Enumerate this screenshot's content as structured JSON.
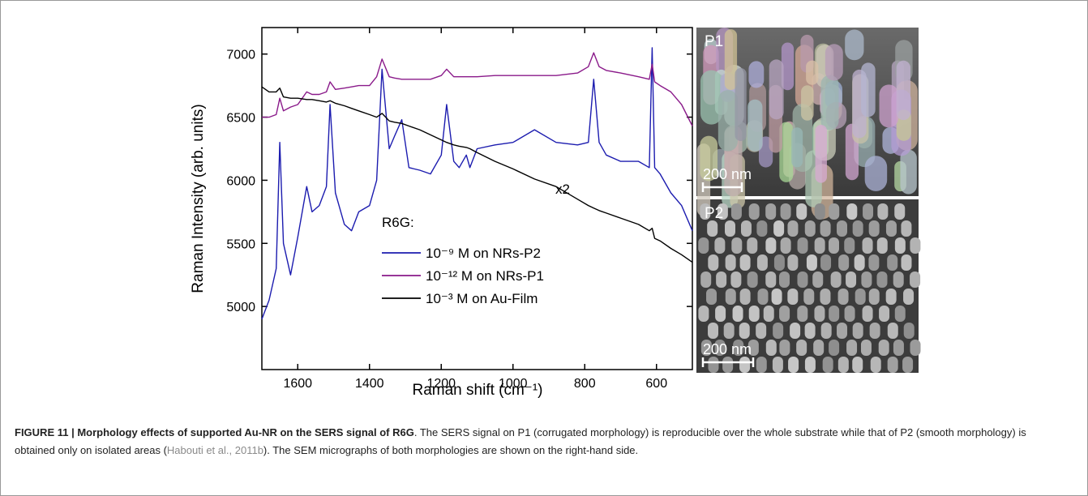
{
  "chart_data": {
    "type": "line",
    "xlabel": "Raman shift (cm⁻¹)",
    "ylabel": "Raman Intensity (arb. units)",
    "legend_title": "R6G:",
    "annotation": "x2",
    "x": [
      1700,
      1680,
      1660,
      1650,
      1640,
      1620,
      1600,
      1575,
      1560,
      1540,
      1520,
      1510,
      1495,
      1470,
      1450,
      1430,
      1400,
      1380,
      1365,
      1345,
      1330,
      1310,
      1290,
      1260,
      1230,
      1200,
      1185,
      1165,
      1150,
      1130,
      1120,
      1100,
      1050,
      1000,
      940,
      880,
      820,
      790,
      775,
      760,
      740,
      700,
      650,
      620,
      612,
      605,
      590,
      560,
      530,
      500
    ],
    "series": [
      {
        "name": "10⁻⁹ M on NRs-P2",
        "color": "#1c1caf",
        "values": [
          4900,
          5050,
          5300,
          6300,
          5500,
          5250,
          5550,
          5950,
          5750,
          5800,
          5950,
          6600,
          5900,
          5650,
          5600,
          5750,
          5800,
          6000,
          6880,
          6250,
          6350,
          6480,
          6100,
          6080,
          6050,
          6200,
          6600,
          6150,
          6100,
          6200,
          6100,
          6250,
          6280,
          6300,
          6400,
          6300,
          6280,
          6300,
          6800,
          6300,
          6200,
          6150,
          6150,
          6100,
          7050,
          6100,
          6050,
          5900,
          5800,
          5600
        ]
      },
      {
        "name": "10⁻¹² M on NRs-P1",
        "color": "#8a1a8a",
        "values": [
          6500,
          6500,
          6520,
          6650,
          6550,
          6580,
          6600,
          6700,
          6680,
          6680,
          6700,
          6780,
          6720,
          6730,
          6740,
          6750,
          6750,
          6820,
          6960,
          6820,
          6810,
          6800,
          6800,
          6800,
          6800,
          6830,
          6880,
          6820,
          6820,
          6820,
          6820,
          6820,
          6830,
          6830,
          6830,
          6830,
          6850,
          6900,
          7010,
          6900,
          6870,
          6850,
          6820,
          6800,
          6920,
          6780,
          6750,
          6700,
          6600,
          6430
        ]
      },
      {
        "name": "10⁻³ M on Au-Film",
        "color": "#000000",
        "values": [
          6740,
          6700,
          6700,
          6730,
          6660,
          6650,
          6650,
          6640,
          6640,
          6630,
          6620,
          6630,
          6610,
          6590,
          6570,
          6550,
          6520,
          6500,
          6530,
          6470,
          6460,
          6450,
          6430,
          6400,
          6360,
          6320,
          6300,
          6280,
          6270,
          6260,
          6250,
          6220,
          6150,
          6090,
          6010,
          5950,
          5850,
          5800,
          5780,
          5760,
          5740,
          5700,
          5650,
          5600,
          5620,
          5540,
          5520,
          5460,
          5410,
          5350
        ]
      }
    ],
    "xlim": [
      1700,
      500
    ],
    "ylim": [
      4500,
      7210
    ],
    "xticks": [
      1600,
      1400,
      1200,
      1000,
      800,
      600
    ],
    "yticks": [
      5000,
      5500,
      6000,
      6500,
      7000
    ]
  },
  "panels": [
    {
      "label": "P1",
      "scale": "200 nm"
    },
    {
      "label": "P2",
      "scale": "200 nm"
    }
  ],
  "caption": {
    "label": "FIGURE 11 | Morphology effects of supported Au-NR on the SERS signal of R6G",
    "text": ". The SERS signal on P1 (corrugated morphology) is reproducible over the whole substrate while that of P2 (smooth morphology) is obtained only on isolated areas (",
    "citation": "Habouti et al., 2011b",
    "text_end": "). The SEM micrographs of both morphologies are shown on the right-hand side."
  }
}
